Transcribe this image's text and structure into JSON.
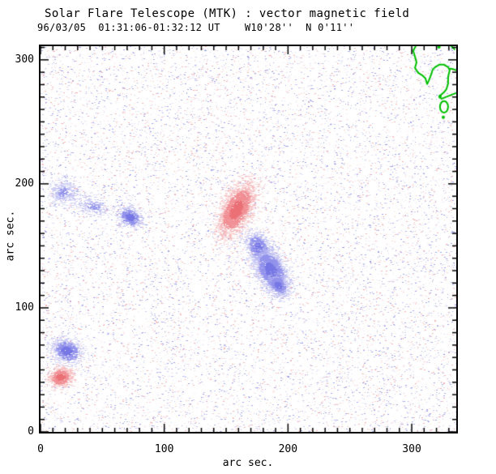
{
  "header": {
    "title": "Solar Flare Telescope (MTK) : vector magnetic field",
    "subtitle": "96/03/05  01:31:06-01:32:12 UT    W10'28''  N 0'11''"
  },
  "chart_data": {
    "type": "scatter",
    "title": "Solar Flare Telescope (MTK) : vector magnetic field",
    "subtitle": "96/03/05  01:31:06-01:32:12 UT    W10'28''  N 0'11''",
    "xlabel": "arc sec.",
    "ylabel": "arc sec.",
    "xlim": [
      0,
      336
    ],
    "ylim": [
      0,
      311
    ],
    "x_major_ticks": [
      0,
      100,
      200,
      300
    ],
    "y_major_ticks": [
      0,
      100,
      200,
      300
    ],
    "x_tick_labels": [
      "0",
      "100",
      "200",
      "300"
    ],
    "y_tick_labels": [
      "0",
      "100",
      "200",
      "300"
    ],
    "minor_tick_step": 10,
    "grid": false,
    "legend": "none",
    "colors": {
      "axis": "#000000",
      "background": "#ffffff",
      "contour": "#00c000",
      "positive_polarity_core": "#ea7076",
      "negative_polarity_core": "#7878e4",
      "positive_shades": [
        "rgba(234,112,118,0.95)",
        "rgba(240,142,147,0.78)",
        "rgba(246,178,181,0.55)"
      ],
      "negative_shades": [
        "rgba(118,118,228,0.95)",
        "rgba(146,146,236,0.78)",
        "rgba(186,186,243,0.55)"
      ],
      "noise_red": [
        "rgba(240,150,152,0.72)",
        "rgba(246,186,187,0.58)",
        "rgba(250,212,212,0.48)"
      ],
      "noise_blue": [
        "rgba(132,132,230,0.75)",
        "rgba(166,166,238,0.62)",
        "rgba(202,202,246,0.5)"
      ]
    },
    "noise": {
      "count": 14000,
      "blue_fraction": 0.57,
      "seed": 1234
    },
    "features": [
      {
        "name": "main-positive-region",
        "polarity": "positive",
        "center": [
          158,
          179
        ],
        "sigma": [
          12,
          6
        ],
        "angle_deg": 62,
        "points": 2600,
        "faint": false
      },
      {
        "name": "main-negative-upper-lobe",
        "polarity": "negative",
        "center": [
          176,
          148
        ],
        "sigma": [
          7,
          4.5
        ],
        "angle_deg": -62,
        "points": 1100,
        "faint": false
      },
      {
        "name": "main-negative-core",
        "polarity": "negative",
        "center": [
          186,
          130
        ],
        "sigma": [
          10,
          6
        ],
        "angle_deg": -62,
        "points": 2400,
        "faint": false
      },
      {
        "name": "main-negative-tail",
        "polarity": "negative",
        "center": [
          192,
          118
        ],
        "sigma": [
          5,
          3.5
        ],
        "angle_deg": -50,
        "points": 500,
        "faint": false
      },
      {
        "name": "small-negative-left",
        "polarity": "negative",
        "center": [
          72,
          173
        ],
        "sigma": [
          5,
          4
        ],
        "angle_deg": -30,
        "points": 620,
        "faint": false
      },
      {
        "name": "faint-negative-far-left",
        "polarity": "negative",
        "center": [
          18,
          193
        ],
        "sigma": [
          6,
          5
        ],
        "angle_deg": 0,
        "points": 450,
        "faint": true
      },
      {
        "name": "faint-negative-wisp",
        "polarity": "negative",
        "center": [
          42,
          182
        ],
        "sigma": [
          8,
          4
        ],
        "angle_deg": -15,
        "points": 300,
        "faint": true
      },
      {
        "name": "lower-left-negative",
        "polarity": "negative",
        "center": [
          21,
          65
        ],
        "sigma": [
          6.5,
          5
        ],
        "angle_deg": -20,
        "points": 850,
        "faint": false
      },
      {
        "name": "lower-left-positive",
        "polarity": "positive",
        "center": [
          16,
          44
        ],
        "sigma": [
          5,
          4
        ],
        "angle_deg": 15,
        "points": 750,
        "faint": false
      }
    ],
    "contours": {
      "color": "#00c000",
      "line_width": 2,
      "paths": [
        [
          [
            303.2,
            311.1
          ],
          [
            301.2,
            307.2
          ],
          [
            302.6,
            302.6
          ],
          [
            303.9,
            298.0
          ],
          [
            302.6,
            293.5
          ],
          [
            305.2,
            289.5
          ],
          [
            308.4,
            287.6
          ],
          [
            311.1,
            285.0
          ],
          [
            312.4,
            280.4
          ],
          [
            313.7,
            283.0
          ],
          [
            315.7,
            288.2
          ],
          [
            317.0,
            292.2
          ],
          [
            318.9,
            294.1
          ],
          [
            322.2,
            296.1
          ],
          [
            326.1,
            296.1
          ],
          [
            329.4,
            294.1
          ],
          [
            330.7,
            291.5
          ],
          [
            329.4,
            286.3
          ],
          [
            329.4,
            281.0
          ],
          [
            328.1,
            276.5
          ],
          [
            326.1,
            273.9
          ],
          [
            322.9,
            271.2
          ],
          [
            322.2,
            269.9
          ],
          [
            324.2,
            268.6
          ],
          [
            327.4,
            269.9
          ],
          [
            330.7,
            271.2
          ],
          [
            334.0,
            272.5
          ],
          [
            336.0,
            273.2
          ]
        ],
        [
          [
            330.7,
            292.8
          ],
          [
            333.5,
            292.5
          ],
          [
            336.0,
            291.5
          ]
        ],
        [
          [
            330.1,
            313.1
          ],
          [
            332.0,
            311.0
          ],
          [
            334.6,
            308.5
          ]
        ]
      ],
      "ellipses": [
        {
          "cx": 326.1,
          "cy": 262.1,
          "rx": 3.3,
          "ry": 4.6
        }
      ],
      "dots": [
        {
          "x": 322.9,
          "y": 270.6
        },
        {
          "x": 325.5,
          "y": 253.6
        },
        {
          "x": 322.0,
          "y": 310.3
        }
      ]
    }
  }
}
